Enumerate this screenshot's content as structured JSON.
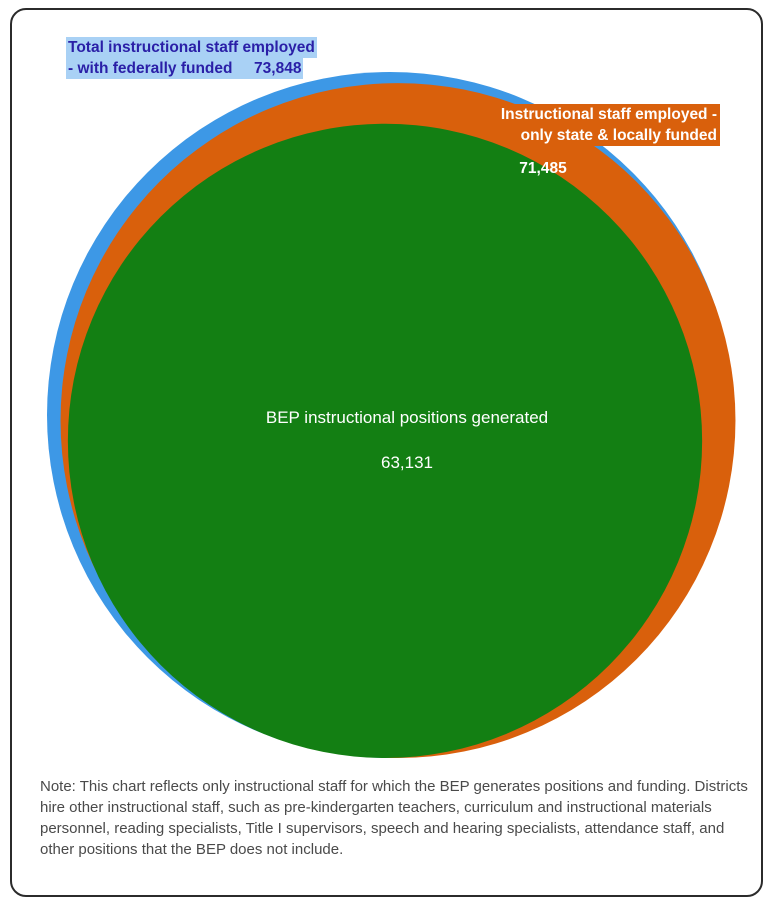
{
  "chart_data": {
    "type": "nested-area",
    "series": [
      {
        "name": "Total instructional staff employed - with federally funded",
        "value": 73848,
        "value_label": "73,848",
        "color": "#3d98e6"
      },
      {
        "name": "Instructional staff employed - only state & locally funded",
        "value": 71485,
        "value_label": "71,485",
        "color": "#d9600c"
      },
      {
        "name": "BEP instructional positions generated",
        "value": 63131,
        "value_label": "63,131",
        "color": "#137f13"
      }
    ],
    "labels": {
      "total_line1": "Total instructional staff employed",
      "total_line2": "-  with federally funded",
      "total_value": "73,848",
      "state_line1": "Instructional staff employed -",
      "state_line2": "only state & locally funded",
      "state_value": "71,485",
      "bep_title": "BEP instructional positions generated",
      "bep_value": "63,131"
    },
    "note": "Note: This chart reflects only instructional staff for which the BEP generates positions and funding.  Districts hire other instructional staff, such as pre-kindergarten teachers, curriculum and instructional materials personnel, reading specialists, Title I supervisors, speech and hearing specialists, attendance staff, and other positions that the BEP does not include."
  }
}
